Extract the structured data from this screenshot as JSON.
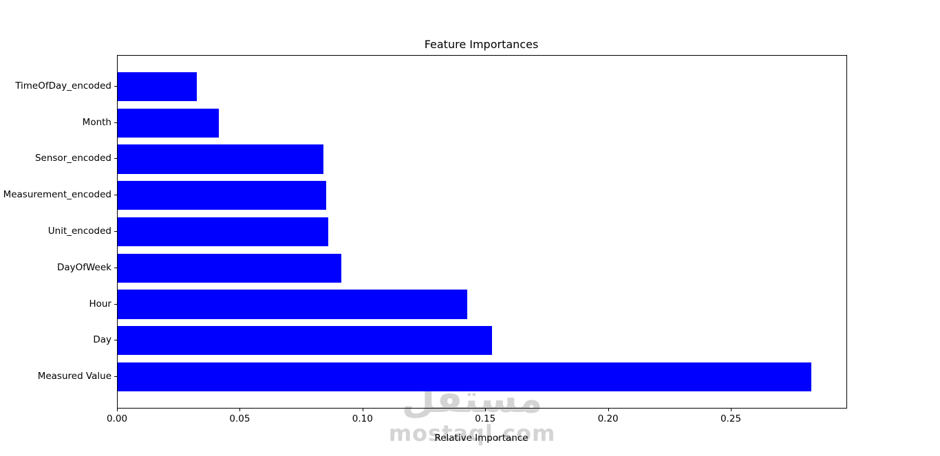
{
  "chart_data": {
    "type": "bar",
    "orientation": "horizontal",
    "title": "Feature Importances",
    "xlabel": "Relative Importance",
    "ylabel": "",
    "categories_top_to_bottom": [
      "TimeOfDay_encoded",
      "Month",
      "Sensor_encoded",
      "Measurement_encoded",
      "Unit_encoded",
      "DayOfWeek",
      "Hour",
      "Day",
      "Measured Value"
    ],
    "values_top_to_bottom": [
      0.0323,
      0.0413,
      0.0838,
      0.085,
      0.0858,
      0.0911,
      0.1424,
      0.1524,
      0.2826
    ],
    "xticks": [
      0.0,
      0.05,
      0.1,
      0.15,
      0.2,
      0.25
    ],
    "xtick_labels": [
      "0.00",
      "0.05",
      "0.10",
      "0.15",
      "0.20",
      "0.25"
    ],
    "xlim": [
      0,
      0.2968
    ],
    "bar_color": "#0000ff",
    "axis_color": "#000000",
    "grid": false,
    "legend": null
  },
  "watermark": {
    "arabic_text": "مستقل",
    "latin_text": "mostaql.com",
    "color": "#d4d4d4"
  }
}
